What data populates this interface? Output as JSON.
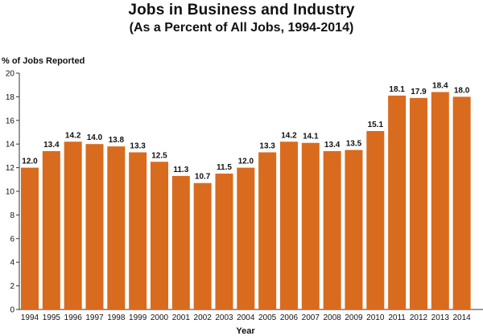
{
  "chart_data": {
    "type": "bar",
    "title": "Jobs in Business and Industry",
    "subtitle": "(As a Percent of All Jobs, 1994-2014)",
    "ylabel": "% of Jobs Reported",
    "xlabel": "Year",
    "ylim": [
      0,
      20
    ],
    "yticks": [
      0,
      2,
      4,
      6,
      8,
      10,
      12,
      14,
      16,
      18,
      20
    ],
    "grid": false,
    "bar_color": "#D96B1E",
    "categories": [
      "1994",
      "1995",
      "1996",
      "1997",
      "1998",
      "1999",
      "2000",
      "2001",
      "2002",
      "2003",
      "2004",
      "2005",
      "2006",
      "2007",
      "2008",
      "2009",
      "2010",
      "2011",
      "2012",
      "2013",
      "2014"
    ],
    "values": [
      12.0,
      13.4,
      14.2,
      14.0,
      13.8,
      13.3,
      12.5,
      11.3,
      10.7,
      11.5,
      12.0,
      13.3,
      14.2,
      14.1,
      13.4,
      13.5,
      15.1,
      18.1,
      17.9,
      18.4,
      18.0
    ],
    "data_labels": [
      "12.0",
      "13.4",
      "14.2",
      "14.0",
      "13.8",
      "13.3",
      "12.5",
      "11.3",
      "10.7",
      "11.5",
      "12.0",
      "13.3",
      "14.2",
      "14.1",
      "13.4",
      "13.5",
      "15.1",
      "18.1",
      "17.9",
      "18.4",
      "18.0"
    ]
  }
}
